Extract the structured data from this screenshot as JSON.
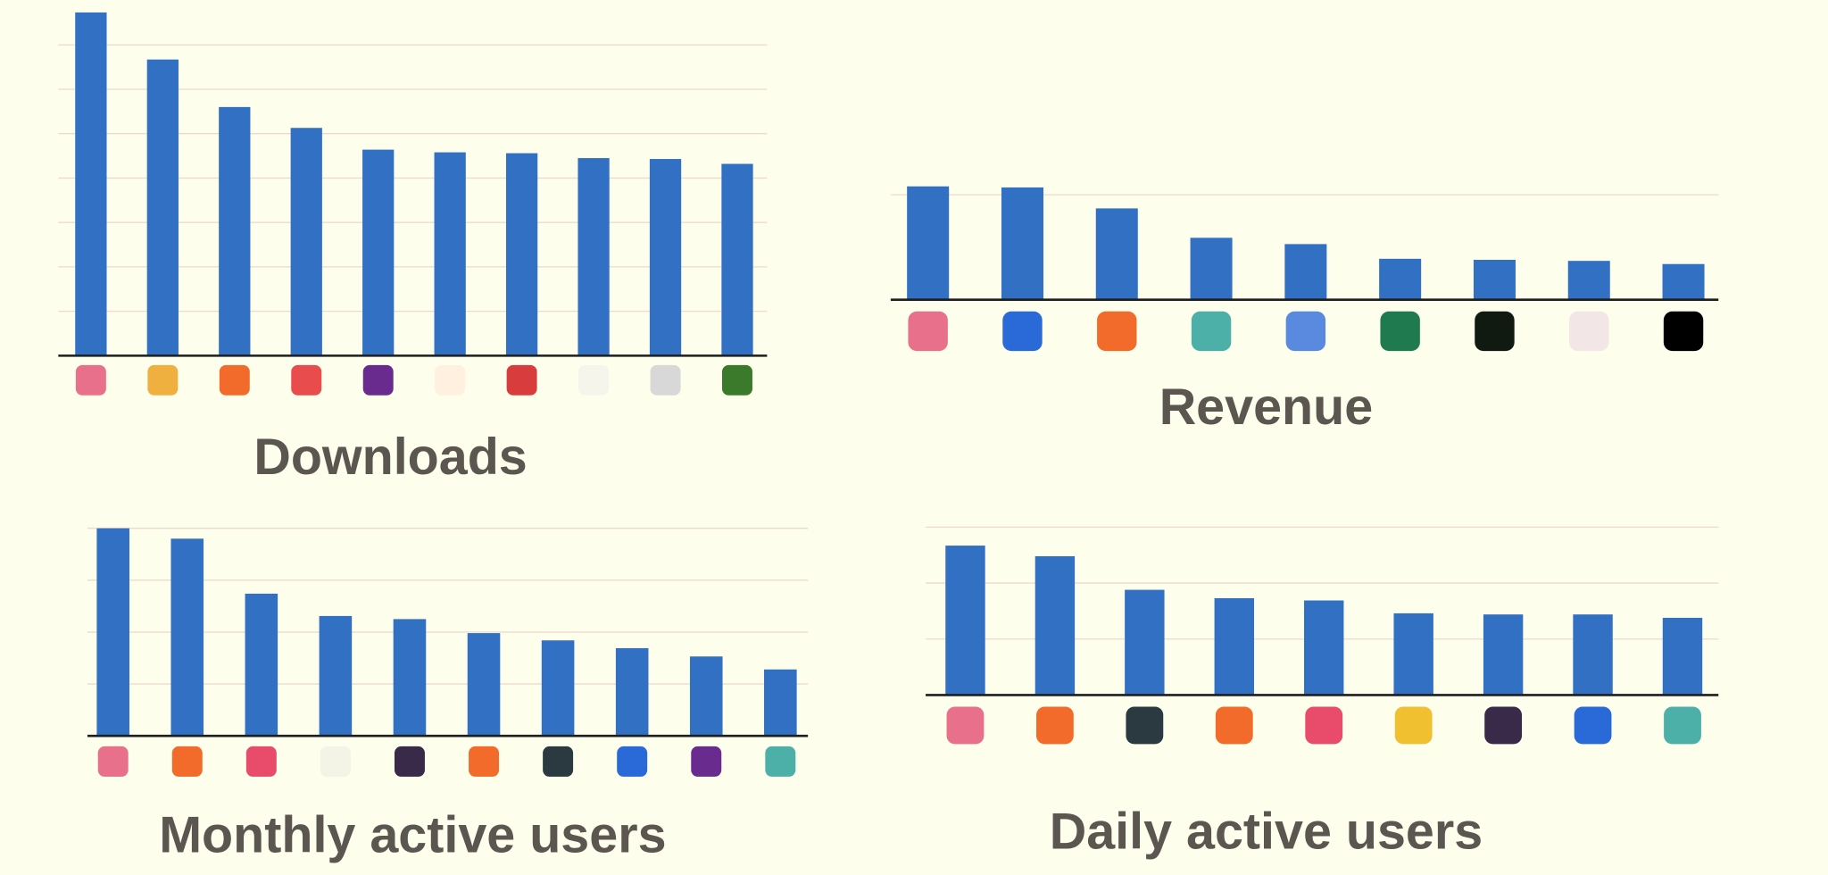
{
  "chart_data": [
    {
      "type": "bar",
      "title": "Downloads",
      "values": [
        7.73,
        6.67,
        5.6,
        5.13,
        4.64,
        4.58,
        4.56,
        4.45,
        4.43,
        4.32
      ],
      "color": "#3170c2",
      "ylim": [
        0,
        7.8
      ],
      "yticks": [
        1,
        2,
        3,
        4,
        5,
        6,
        7
      ],
      "grid": true
    },
    {
      "type": "bar",
      "title": "Revenue",
      "values": [
        1.08,
        1.07,
        0.87,
        0.59,
        0.53,
        0.39,
        0.38,
        0.37,
        0.34
      ],
      "color": "#3170c2",
      "ylim": [
        0,
        1.1
      ],
      "yticks": [
        1
      ],
      "grid": true
    },
    {
      "type": "bar",
      "title": "Monthly active users",
      "values": [
        4.0,
        3.8,
        2.74,
        2.31,
        2.25,
        1.98,
        1.84,
        1.69,
        1.53,
        1.28
      ],
      "color": "#3170c2",
      "ylim": [
        0,
        4
      ],
      "yticks": [
        1,
        2,
        3,
        4
      ],
      "grid": true
    },
    {
      "type": "bar",
      "title": "Daily active users",
      "values": [
        2.67,
        2.48,
        1.88,
        1.73,
        1.69,
        1.46,
        1.44,
        1.44,
        1.38
      ],
      "color": "#3170c2",
      "ylim": [
        0,
        3
      ],
      "yticks": [
        1,
        2,
        3
      ],
      "grid": true
    }
  ]
}
